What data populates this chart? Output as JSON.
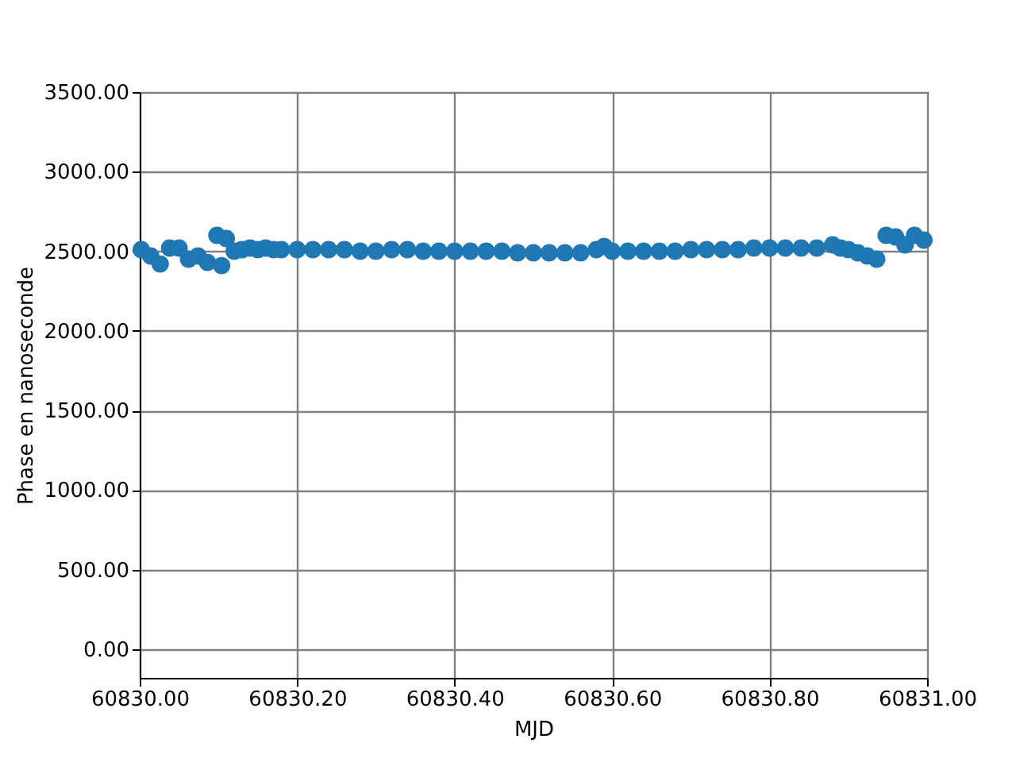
{
  "chart_data": {
    "type": "scatter",
    "xlabel": "MJD",
    "ylabel": "Phase en nanoseconde",
    "xlim": [
      60830,
      60831
    ],
    "ylim": [
      -180,
      3500
    ],
    "xticks": [
      {
        "value": 60830,
        "label": "60830.00"
      },
      {
        "value": 60830.2,
        "label": "60830.20"
      },
      {
        "value": 60830.4,
        "label": "60830.40"
      },
      {
        "value": 60830.6,
        "label": "60830.60"
      },
      {
        "value": 60830.8,
        "label": "60830.80"
      },
      {
        "value": 60831,
        "label": "60831.00"
      }
    ],
    "yticks": [
      {
        "value": 0,
        "label": "0.00"
      },
      {
        "value": 500,
        "label": "500.00"
      },
      {
        "value": 1000,
        "label": "1000.00"
      },
      {
        "value": 1500,
        "label": "1500.00"
      },
      {
        "value": 2000,
        "label": "2000.00"
      },
      {
        "value": 2500,
        "label": "2500.00"
      },
      {
        "value": 3000,
        "label": "3000.00"
      },
      {
        "value": 3500,
        "label": "3500.00"
      }
    ],
    "grid": true,
    "marker": "circle",
    "series": [
      {
        "color": "#1f77b4",
        "x": [
          60830.002,
          60830.014,
          60830.026,
          60830.038,
          60830.05,
          60830.062,
          60830.074,
          60830.086,
          60830.098,
          60830.104,
          60830.11,
          60830.12,
          60830.13,
          60830.14,
          60830.15,
          60830.16,
          60830.17,
          60830.18,
          60830.2,
          60830.22,
          60830.24,
          60830.26,
          60830.28,
          60830.3,
          60830.32,
          60830.34,
          60830.36,
          60830.38,
          60830.4,
          60830.42,
          60830.44,
          60830.46,
          60830.48,
          60830.5,
          60830.52,
          60830.54,
          60830.56,
          60830.58,
          60830.59,
          60830.6,
          60830.62,
          60830.64,
          60830.66,
          60830.68,
          60830.7,
          60830.72,
          60830.74,
          60830.76,
          60830.78,
          60830.8,
          60830.82,
          60830.84,
          60830.86,
          60830.88,
          60830.89,
          60830.9,
          60830.912,
          60830.924,
          60830.936,
          60830.948,
          60830.96,
          60830.972,
          60830.984,
          60830.996
        ],
        "values": [
          2510,
          2470,
          2420,
          2520,
          2520,
          2450,
          2470,
          2430,
          2600,
          2410,
          2580,
          2500,
          2510,
          2520,
          2510,
          2520,
          2510,
          2510,
          2510,
          2510,
          2510,
          2510,
          2500,
          2500,
          2510,
          2510,
          2500,
          2500,
          2500,
          2500,
          2500,
          2500,
          2490,
          2490,
          2490,
          2490,
          2490,
          2510,
          2530,
          2500,
          2500,
          2500,
          2500,
          2500,
          2510,
          2510,
          2510,
          2510,
          2520,
          2520,
          2520,
          2520,
          2520,
          2540,
          2520,
          2510,
          2490,
          2470,
          2450,
          2600,
          2590,
          2540,
          2600,
          2570
        ]
      }
    ]
  }
}
